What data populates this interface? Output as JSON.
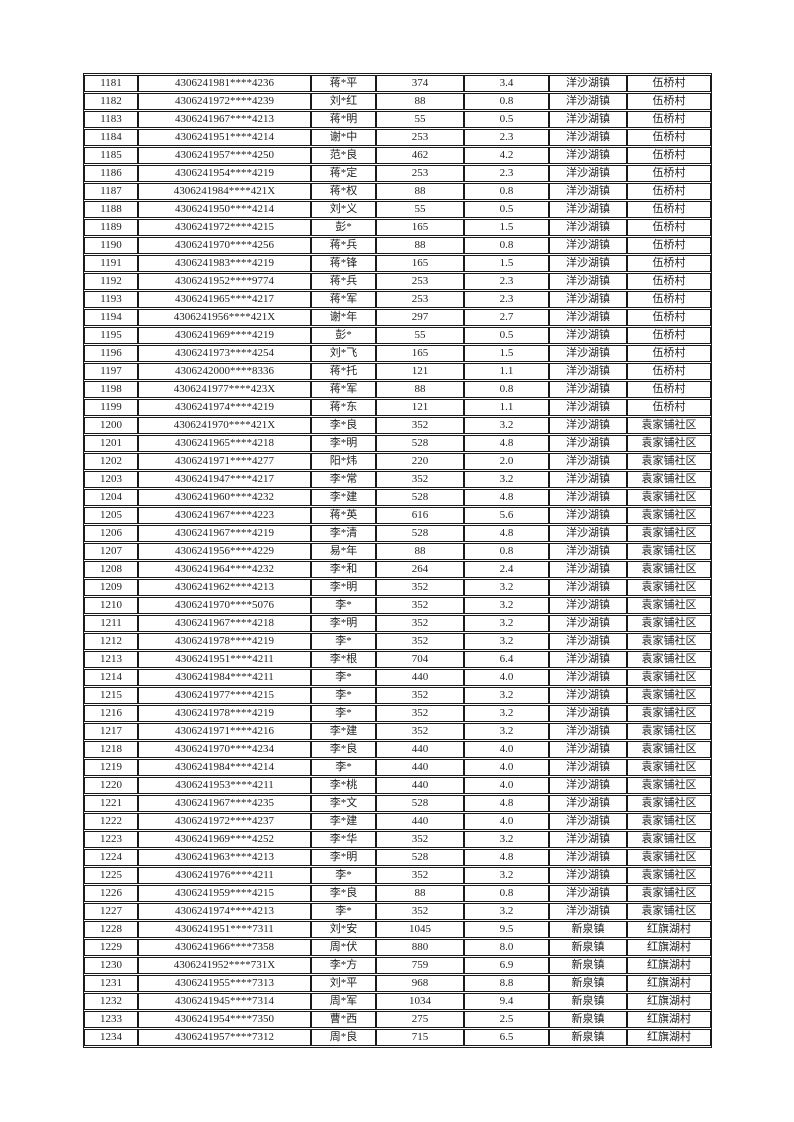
{
  "colors": {
    "page_background": "#ffffff",
    "text": "#1f1f1f",
    "table_border": "#1b1b1b"
  },
  "table": {
    "column_keys": [
      "seq",
      "id-number",
      "name",
      "amount",
      "value",
      "town",
      "village"
    ],
    "rows": [
      [
        "1181",
        "4306241981****4236",
        "蒋*平",
        "374",
        "3.4",
        "洋沙湖镇",
        "伍桥村"
      ],
      [
        "1182",
        "4306241972****4239",
        "刘*红",
        "88",
        "0.8",
        "洋沙湖镇",
        "伍桥村"
      ],
      [
        "1183",
        "4306241967****4213",
        "蒋*明",
        "55",
        "0.5",
        "洋沙湖镇",
        "伍桥村"
      ],
      [
        "1184",
        "4306241951****4214",
        "谢*中",
        "253",
        "2.3",
        "洋沙湖镇",
        "伍桥村"
      ],
      [
        "1185",
        "4306241957****4250",
        "范*良",
        "462",
        "4.2",
        "洋沙湖镇",
        "伍桥村"
      ],
      [
        "1186",
        "4306241954****4219",
        "蒋*定",
        "253",
        "2.3",
        "洋沙湖镇",
        "伍桥村"
      ],
      [
        "1187",
        "4306241984****421X",
        "蒋*权",
        "88",
        "0.8",
        "洋沙湖镇",
        "伍桥村"
      ],
      [
        "1188",
        "4306241950****4214",
        "刘*义",
        "55",
        "0.5",
        "洋沙湖镇",
        "伍桥村"
      ],
      [
        "1189",
        "4306241972****4215",
        "彭*",
        "165",
        "1.5",
        "洋沙湖镇",
        "伍桥村"
      ],
      [
        "1190",
        "4306241970****4256",
        "蒋*兵",
        "88",
        "0.8",
        "洋沙湖镇",
        "伍桥村"
      ],
      [
        "1191",
        "4306241983****4219",
        "蒋*锋",
        "165",
        "1.5",
        "洋沙湖镇",
        "伍桥村"
      ],
      [
        "1192",
        "4306241952****9774",
        "蒋*兵",
        "253",
        "2.3",
        "洋沙湖镇",
        "伍桥村"
      ],
      [
        "1193",
        "4306241965****4217",
        "蒋*军",
        "253",
        "2.3",
        "洋沙湖镇",
        "伍桥村"
      ],
      [
        "1194",
        "4306241956****421X",
        "谢*年",
        "297",
        "2.7",
        "洋沙湖镇",
        "伍桥村"
      ],
      [
        "1195",
        "4306241969****4219",
        "彭*",
        "55",
        "0.5",
        "洋沙湖镇",
        "伍桥村"
      ],
      [
        "1196",
        "4306241973****4254",
        "刘*飞",
        "165",
        "1.5",
        "洋沙湖镇",
        "伍桥村"
      ],
      [
        "1197",
        "4306242000****8336",
        "蒋*托",
        "121",
        "1.1",
        "洋沙湖镇",
        "伍桥村"
      ],
      [
        "1198",
        "4306241977****423X",
        "蒋*军",
        "88",
        "0.8",
        "洋沙湖镇",
        "伍桥村"
      ],
      [
        "1199",
        "4306241974****4219",
        "蒋*东",
        "121",
        "1.1",
        "洋沙湖镇",
        "伍桥村"
      ],
      [
        "1200",
        "4306241970****421X",
        "李*良",
        "352",
        "3.2",
        "洋沙湖镇",
        "袁家铺社区"
      ],
      [
        "1201",
        "4306241965****4218",
        "李*明",
        "528",
        "4.8",
        "洋沙湖镇",
        "袁家铺社区"
      ],
      [
        "1202",
        "4306241971****4277",
        "阳*炜",
        "220",
        "2.0",
        "洋沙湖镇",
        "袁家铺社区"
      ],
      [
        "1203",
        "4306241947****4217",
        "李*常",
        "352",
        "3.2",
        "洋沙湖镇",
        "袁家铺社区"
      ],
      [
        "1204",
        "4306241960****4232",
        "李*建",
        "528",
        "4.8",
        "洋沙湖镇",
        "袁家铺社区"
      ],
      [
        "1205",
        "4306241967****4223",
        "蒋*英",
        "616",
        "5.6",
        "洋沙湖镇",
        "袁家铺社区"
      ],
      [
        "1206",
        "4306241967****4219",
        "李*清",
        "528",
        "4.8",
        "洋沙湖镇",
        "袁家铺社区"
      ],
      [
        "1207",
        "4306241956****4229",
        "易*年",
        "88",
        "0.8",
        "洋沙湖镇",
        "袁家铺社区"
      ],
      [
        "1208",
        "4306241964****4232",
        "李*和",
        "264",
        "2.4",
        "洋沙湖镇",
        "袁家铺社区"
      ],
      [
        "1209",
        "4306241962****4213",
        "李*明",
        "352",
        "3.2",
        "洋沙湖镇",
        "袁家铺社区"
      ],
      [
        "1210",
        "4306241970****5076",
        "李*",
        "352",
        "3.2",
        "洋沙湖镇",
        "袁家铺社区"
      ],
      [
        "1211",
        "4306241967****4218",
        "李*明",
        "352",
        "3.2",
        "洋沙湖镇",
        "袁家铺社区"
      ],
      [
        "1212",
        "4306241978****4219",
        "李*",
        "352",
        "3.2",
        "洋沙湖镇",
        "袁家铺社区"
      ],
      [
        "1213",
        "4306241951****4211",
        "李*根",
        "704",
        "6.4",
        "洋沙湖镇",
        "袁家铺社区"
      ],
      [
        "1214",
        "4306241984****4211",
        "李*",
        "440",
        "4.0",
        "洋沙湖镇",
        "袁家铺社区"
      ],
      [
        "1215",
        "4306241977****4215",
        "李*",
        "352",
        "3.2",
        "洋沙湖镇",
        "袁家铺社区"
      ],
      [
        "1216",
        "4306241978****4219",
        "李*",
        "352",
        "3.2",
        "洋沙湖镇",
        "袁家铺社区"
      ],
      [
        "1217",
        "4306241971****4216",
        "李*建",
        "352",
        "3.2",
        "洋沙湖镇",
        "袁家铺社区"
      ],
      [
        "1218",
        "4306241970****4234",
        "李*良",
        "440",
        "4.0",
        "洋沙湖镇",
        "袁家铺社区"
      ],
      [
        "1219",
        "4306241984****4214",
        "李*",
        "440",
        "4.0",
        "洋沙湖镇",
        "袁家铺社区"
      ],
      [
        "1220",
        "4306241953****4211",
        "李*桃",
        "440",
        "4.0",
        "洋沙湖镇",
        "袁家铺社区"
      ],
      [
        "1221",
        "4306241967****4235",
        "李*文",
        "528",
        "4.8",
        "洋沙湖镇",
        "袁家铺社区"
      ],
      [
        "1222",
        "4306241972****4237",
        "李*建",
        "440",
        "4.0",
        "洋沙湖镇",
        "袁家铺社区"
      ],
      [
        "1223",
        "4306241969****4252",
        "李*华",
        "352",
        "3.2",
        "洋沙湖镇",
        "袁家铺社区"
      ],
      [
        "1224",
        "4306241963****4213",
        "李*明",
        "528",
        "4.8",
        "洋沙湖镇",
        "袁家铺社区"
      ],
      [
        "1225",
        "4306241976****4211",
        "李*",
        "352",
        "3.2",
        "洋沙湖镇",
        "袁家铺社区"
      ],
      [
        "1226",
        "4306241959****4215",
        "李*良",
        "88",
        "0.8",
        "洋沙湖镇",
        "袁家铺社区"
      ],
      [
        "1227",
        "4306241974****4213",
        "李*",
        "352",
        "3.2",
        "洋沙湖镇",
        "袁家铺社区"
      ],
      [
        "1228",
        "4306241951****7311",
        "刘*安",
        "1045",
        "9.5",
        "新泉镇",
        "红旗湖村"
      ],
      [
        "1229",
        "4306241966****7358",
        "周*伏",
        "880",
        "8.0",
        "新泉镇",
        "红旗湖村"
      ],
      [
        "1230",
        "4306241952****731X",
        "李*方",
        "759",
        "6.9",
        "新泉镇",
        "红旗湖村"
      ],
      [
        "1231",
        "4306241955****7313",
        "刘*平",
        "968",
        "8.8",
        "新泉镇",
        "红旗湖村"
      ],
      [
        "1232",
        "4306241945****7314",
        "周*军",
        "1034",
        "9.4",
        "新泉镇",
        "红旗湖村"
      ],
      [
        "1233",
        "4306241954****7350",
        "曹*西",
        "275",
        "2.5",
        "新泉镇",
        "红旗湖村"
      ],
      [
        "1234",
        "4306241957****7312",
        "周*良",
        "715",
        "6.5",
        "新泉镇",
        "红旗湖村"
      ]
    ]
  }
}
